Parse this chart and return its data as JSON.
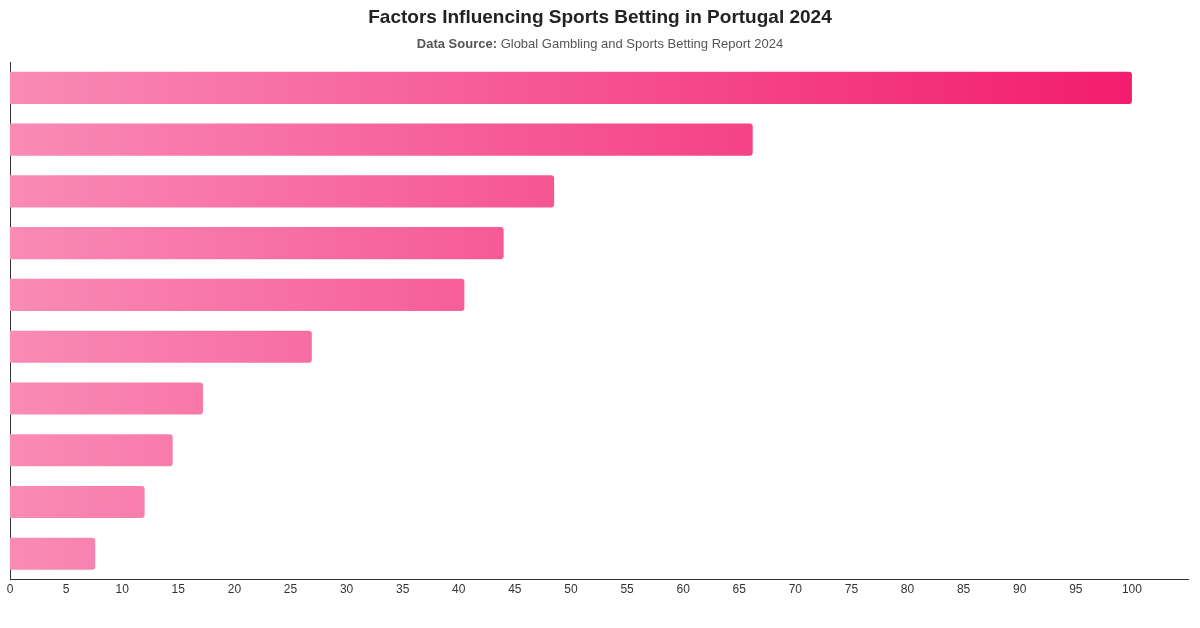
{
  "chart_data": {
    "type": "bar",
    "orientation": "horizontal",
    "title": "Factors Influencing Sports Betting in Portugal 2024",
    "subtitle": "Data Source: Global Gambling and Sports Betting Report 2024",
    "categories": [
      null,
      null,
      null,
      null,
      null,
      null,
      null,
      null,
      null,
      null
    ],
    "values": [
      100,
      66.2,
      48.5,
      44,
      40.5,
      26.9,
      17.2,
      14.5,
      12,
      7.6
    ],
    "color": "#f2176a",
    "xlim": [
      0,
      105
    ],
    "xticks": [
      0,
      5,
      10,
      15,
      20,
      25,
      30,
      35,
      40,
      45,
      50,
      55,
      60,
      65,
      70,
      75,
      80,
      85,
      90,
      95,
      100
    ],
    "grid": false,
    "legend": false
  }
}
